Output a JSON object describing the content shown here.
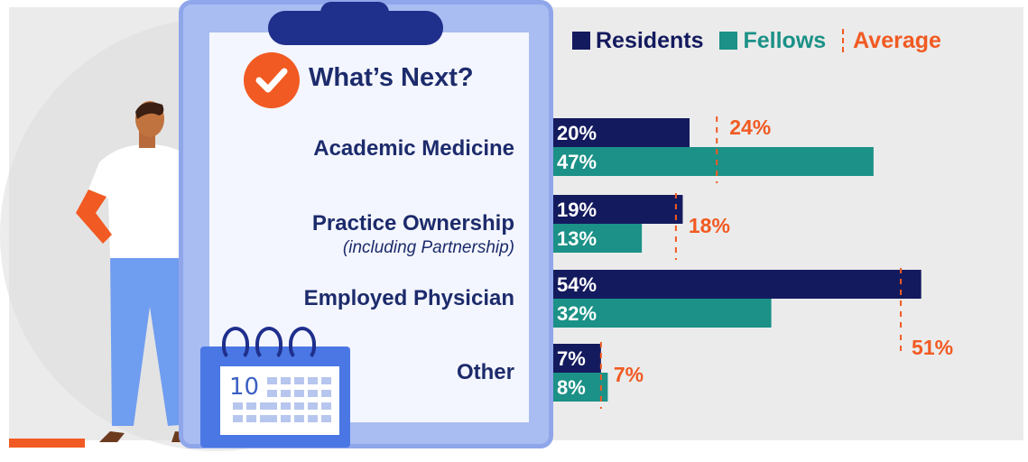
{
  "panel": {
    "title": "What’s Next?",
    "categories": [
      {
        "label": "Academic Medicine",
        "sublabel": ""
      },
      {
        "label": "Practice Ownership",
        "sublabel": "(including Partnership)"
      },
      {
        "label": "Employed Physician",
        "sublabel": ""
      },
      {
        "label": "Other",
        "sublabel": ""
      }
    ]
  },
  "calendar": {
    "day": "10"
  },
  "legend": {
    "residents": "Residents",
    "fellows": "Fellows",
    "average": "Average"
  },
  "colors": {
    "residents": "#141a5e",
    "fellows": "#1b9187",
    "average": "#f15a22",
    "title": "#1c2b6b"
  },
  "chart_data": {
    "type": "bar",
    "orientation": "horizontal",
    "categories": [
      "Academic Medicine",
      "Practice Ownership (including Partnership)",
      "Employed Physician",
      "Other"
    ],
    "series": [
      {
        "name": "Residents",
        "values": [
          20,
          19,
          54,
          7
        ],
        "labels": [
          "20%",
          "19%",
          "54%",
          "7%"
        ]
      },
      {
        "name": "Fellows",
        "values": [
          47,
          13,
          32,
          8
        ],
        "labels": [
          "47%",
          "13%",
          "32%",
          "8%"
        ]
      }
    ],
    "average": {
      "name": "Average",
      "values": [
        24,
        18,
        51,
        7
      ],
      "labels": [
        "24%",
        "18%",
        "51%",
        "7%"
      ]
    },
    "xlim": [
      0,
      60
    ],
    "grid": false,
    "legend": "top-right"
  }
}
